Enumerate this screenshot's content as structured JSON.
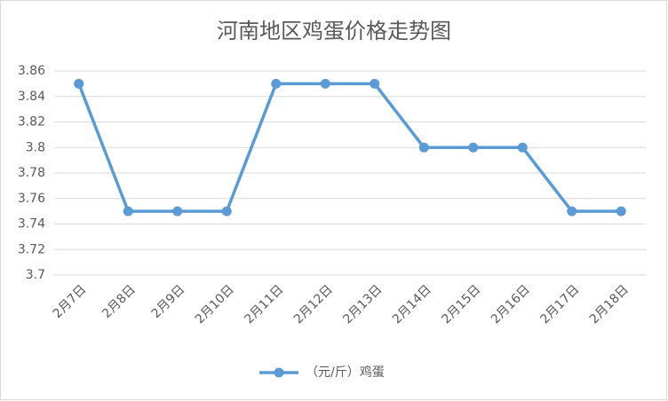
{
  "chart_data": {
    "type": "line",
    "title": "河南地区鸡蛋价格走势图",
    "categories": [
      "2月7日",
      "2月8日",
      "2月9日",
      "2月10日",
      "2月11日",
      "2月12日",
      "2月13日",
      "2月14日",
      "2月15日",
      "2月16日",
      "2月17日",
      "2月18日"
    ],
    "series": [
      {
        "name": "（元/斤）鸡蛋",
        "color": "#5b9bd5",
        "values": [
          3.85,
          3.75,
          3.75,
          3.75,
          3.85,
          3.85,
          3.85,
          3.8,
          3.8,
          3.8,
          3.75,
          3.75
        ]
      }
    ],
    "ylim": [
      3.7,
      3.86
    ],
    "yticks": [
      3.7,
      3.72,
      3.74,
      3.76,
      3.78,
      3.8,
      3.82,
      3.84,
      3.86
    ],
    "grid": true,
    "legend": "bottom"
  }
}
